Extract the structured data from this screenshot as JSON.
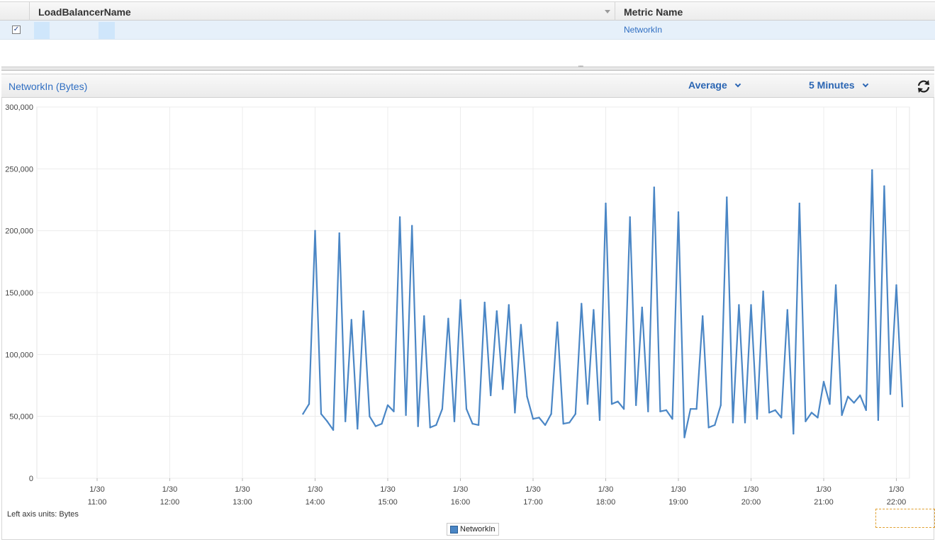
{
  "table": {
    "headers": [
      "LoadBalancerName",
      "Metric Name"
    ],
    "row": {
      "checked": true,
      "metric_name": "NetworkIn"
    }
  },
  "panel": {
    "title": "NetworkIn (Bytes)",
    "statistic": "Average",
    "period": "5 Minutes",
    "left_axis_units": "Left axis units:  Bytes",
    "legend_label": "NetworkIn"
  },
  "colors": {
    "series": "#4a86c5",
    "link": "#2f6ec2"
  },
  "chart_data": {
    "type": "line",
    "title": "NetworkIn (Bytes)",
    "ylabel": "Bytes",
    "ylim": [
      0,
      300000
    ],
    "yticks": [
      "0",
      "50,000",
      "100,000",
      "150,000",
      "200,000",
      "250,000",
      "300,000"
    ],
    "xticks": [
      {
        "date": "1/30",
        "time": "11:00"
      },
      {
        "date": "1/30",
        "time": "12:00"
      },
      {
        "date": "1/30",
        "time": "13:00"
      },
      {
        "date": "1/30",
        "time": "14:00"
      },
      {
        "date": "1/30",
        "time": "15:00"
      },
      {
        "date": "1/30",
        "time": "16:00"
      },
      {
        "date": "1/30",
        "time": "17:00"
      },
      {
        "date": "1/30",
        "time": "18:00"
      },
      {
        "date": "1/30",
        "time": "19:00"
      },
      {
        "date": "1/30",
        "time": "20:00"
      },
      {
        "date": "1/30",
        "time": "21:00"
      },
      {
        "date": "1/30",
        "time": "22:00"
      }
    ],
    "grid": true,
    "legend": "bottom-center",
    "series": [
      {
        "name": "NetworkIn",
        "x": [
          "13:50",
          "13:55",
          "14:00",
          "14:05",
          "14:10",
          "14:15",
          "14:20",
          "14:25",
          "14:30",
          "14:35",
          "14:40",
          "14:45",
          "14:50",
          "14:55",
          "15:00",
          "15:05",
          "15:10",
          "15:15",
          "15:20",
          "15:25",
          "15:30",
          "15:35",
          "15:40",
          "15:45",
          "15:50",
          "15:55",
          "16:00",
          "16:05",
          "16:10",
          "16:15",
          "16:20",
          "16:25",
          "16:30",
          "16:35",
          "16:40",
          "16:45",
          "16:50",
          "16:55",
          "17:00",
          "17:05",
          "17:10",
          "17:15",
          "17:20",
          "17:25",
          "17:30",
          "17:35",
          "17:40",
          "17:45",
          "17:50",
          "17:55",
          "18:00",
          "18:05",
          "18:10",
          "18:15",
          "18:20",
          "18:25",
          "18:30",
          "18:35",
          "18:40",
          "18:45",
          "18:50",
          "18:55",
          "19:00",
          "19:05",
          "19:10",
          "19:15",
          "19:20",
          "19:25",
          "19:30",
          "19:35",
          "19:40",
          "19:45",
          "19:50",
          "19:55",
          "20:00",
          "20:05",
          "20:10",
          "20:15",
          "20:20",
          "20:25",
          "20:30",
          "20:35",
          "20:40",
          "20:45",
          "20:50",
          "20:55",
          "21:00",
          "21:05",
          "21:10",
          "21:15",
          "21:20",
          "21:25",
          "21:30",
          "21:35",
          "21:40",
          "21:45",
          "21:50",
          "21:55",
          "22:00",
          "22:05"
        ],
        "values": [
          52000,
          60000,
          200000,
          52000,
          46000,
          39000,
          198000,
          46000,
          128000,
          40000,
          135000,
          50000,
          42000,
          44000,
          59000,
          54000,
          211000,
          51000,
          204000,
          42000,
          131000,
          41000,
          43000,
          56000,
          129000,
          46000,
          144000,
          56000,
          44000,
          43000,
          142000,
          67000,
          135000,
          72000,
          140000,
          53000,
          124000,
          66000,
          48000,
          49000,
          43000,
          52000,
          126000,
          44000,
          45000,
          52000,
          141000,
          60000,
          136000,
          47000,
          222000,
          60000,
          62000,
          56000,
          211000,
          59000,
          138000,
          54000,
          235000,
          54000,
          55000,
          48000,
          215000,
          33000,
          56000,
          56000,
          131000,
          41000,
          43000,
          59000,
          227000,
          45000,
          140000,
          45000,
          140000,
          48000,
          151000,
          53000,
          55000,
          49000,
          136000,
          36000,
          222000,
          46000,
          53000,
          49000,
          78000,
          60000,
          156000,
          51000,
          66000,
          61000,
          67000,
          55000,
          249000,
          47000,
          236000,
          68000,
          156000,
          58000
        ]
      }
    ]
  }
}
